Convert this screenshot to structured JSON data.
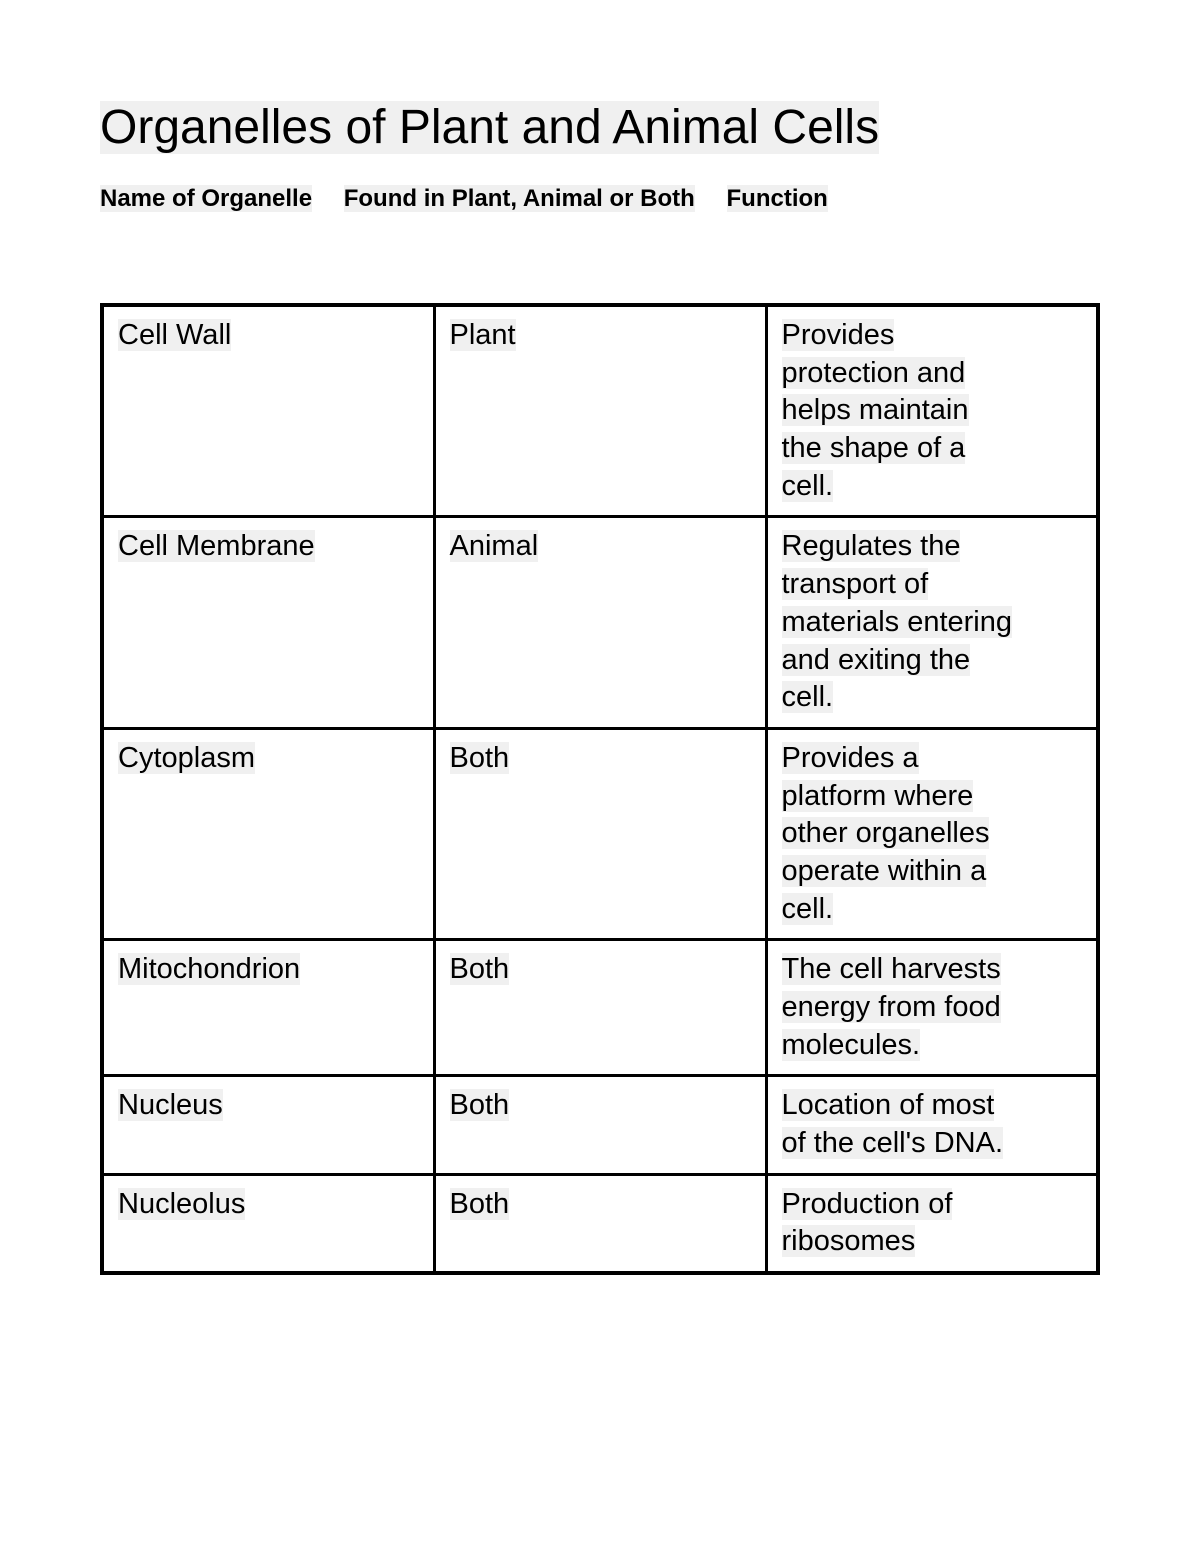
{
  "title": "Organelles of Plant and Animal Cells",
  "headers": {
    "col1": "Name of Organelle",
    "col2": "Found in Plant, Animal or Both",
    "col3": "Function"
  },
  "table": {
    "columns": [
      "Name of Organelle",
      "Found in Plant, Animal or Both",
      "Function"
    ],
    "rows": [
      {
        "organelle": "Cell Wall",
        "found_in": "Plant",
        "function_lines": [
          "Provides",
          "protection and",
          "helps maintain",
          "the shape of a",
          "cell."
        ]
      },
      {
        "organelle": "Cell Membrane",
        "found_in": "Animal",
        "function_lines": [
          "Regulates the",
          "transport of",
          "materials entering",
          "and exiting the",
          "cell."
        ]
      },
      {
        "organelle": "Cytoplasm",
        "found_in": "Both",
        "function_lines": [
          "Provides a",
          "platform where",
          "other organelles",
          "operate within a",
          "cell."
        ]
      },
      {
        "organelle": "Mitochondrion",
        "found_in": "Both",
        "function_lines": [
          "The cell harvests",
          "energy from food",
          "molecules."
        ]
      },
      {
        "organelle": "Nucleus",
        "found_in": "Both",
        "function_lines": [
          "Location of most",
          "of the cell's DNA."
        ]
      },
      {
        "organelle": "Nucleolus",
        "found_in": "Both",
        "function_lines": [
          "Production of",
          "ribosomes"
        ]
      }
    ],
    "border_color": "#000000",
    "border_width_outer": 4,
    "border_width_inner": 3,
    "highlight_color": "#f0f0f0",
    "background_color": "#ffffff",
    "font_size": 29,
    "title_font_size": 48,
    "header_font_size": 24
  }
}
